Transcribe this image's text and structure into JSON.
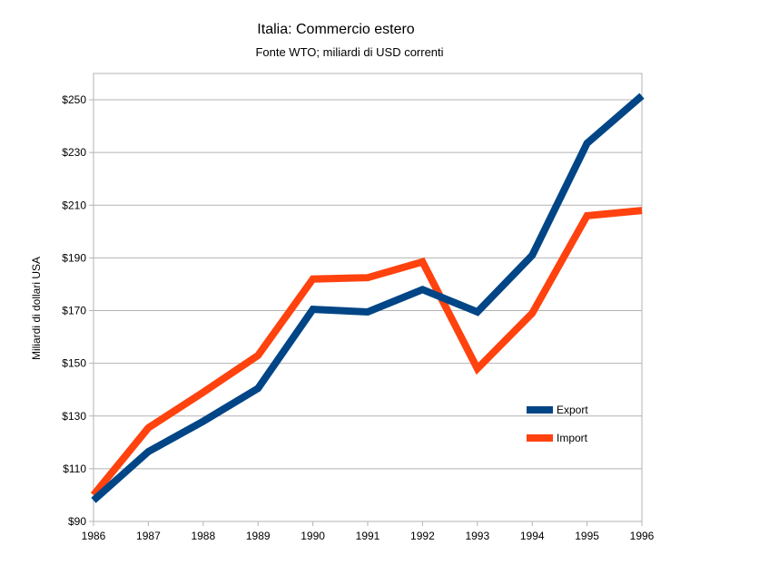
{
  "chart_data": {
    "type": "line",
    "title": "Italia: Commercio estero",
    "subtitle": "Fonte WTO; miliardi di USD correnti",
    "xlabel": "",
    "ylabel": "Miliardi di dollari USA",
    "x": [
      1986,
      1987,
      1988,
      1989,
      1990,
      1991,
      1992,
      1993,
      1994,
      1995,
      1996
    ],
    "ylim": [
      90,
      260
    ],
    "yticks": [
      90,
      110,
      130,
      150,
      170,
      190,
      210,
      230,
      250
    ],
    "ytick_labels": [
      "$90",
      "$110",
      "$130",
      "$150",
      "$170",
      "$190",
      "$210",
      "$230",
      "$250"
    ],
    "xtick_labels": [
      "1986",
      "1987",
      "1988",
      "1989",
      "1990",
      "1991",
      "1992",
      "1993",
      "1994",
      "1995",
      "1996"
    ],
    "grid": true,
    "legend_position": "bottom-right",
    "series": [
      {
        "name": "Export",
        "color": "#004586",
        "values": [
          98,
          116.5,
          128,
          140.5,
          170.5,
          169.5,
          178,
          169.5,
          191,
          233.5,
          251.5
        ]
      },
      {
        "name": "Import",
        "color": "#ff420e",
        "values": [
          100,
          125.5,
          139,
          153,
          182,
          182.5,
          188.5,
          148,
          169,
          206,
          208
        ]
      }
    ]
  }
}
